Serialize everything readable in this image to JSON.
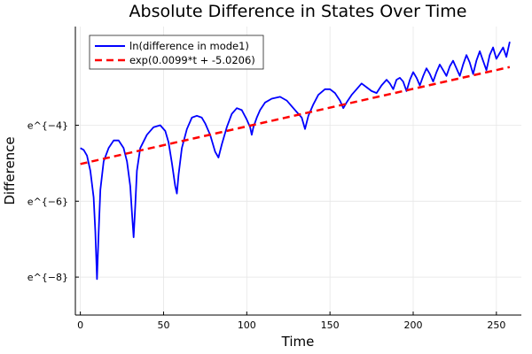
{
  "chart_data": {
    "type": "line",
    "title": "Absolute Difference in States Over Time",
    "xlabel": "Time",
    "ylabel": "Difference",
    "xlim": [
      -3,
      265
    ],
    "ylim": [
      -9.0,
      -1.4
    ],
    "y_scale": "log (base e)",
    "grid": true,
    "legend_position": "top-left",
    "xticks": [
      0,
      50,
      100,
      150,
      200,
      250
    ],
    "xtick_labels": [
      "0",
      "50",
      "100",
      "150",
      "200",
      "250"
    ],
    "yticks": [
      -4,
      -6,
      -8
    ],
    "ytick_labels": [
      "e^{−4}",
      "e^{−6}",
      "e^{−8}"
    ],
    "series": [
      {
        "name": "ln(difference in mode1)",
        "color": "#0000ff",
        "style": "solid",
        "points": [
          [
            0,
            -4.6
          ],
          [
            2,
            -4.65
          ],
          [
            4,
            -4.8
          ],
          [
            6,
            -5.2
          ],
          [
            8,
            -5.9
          ],
          [
            9,
            -6.8
          ],
          [
            10,
            -8.05
          ],
          [
            11,
            -6.8
          ],
          [
            12,
            -5.7
          ],
          [
            14,
            -4.95
          ],
          [
            17,
            -4.6
          ],
          [
            20,
            -4.4
          ],
          [
            23,
            -4.4
          ],
          [
            26,
            -4.6
          ],
          [
            28,
            -4.95
          ],
          [
            30,
            -5.6
          ],
          [
            31,
            -6.3
          ],
          [
            32,
            -6.95
          ],
          [
            33,
            -6.1
          ],
          [
            34,
            -5.2
          ],
          [
            36,
            -4.6
          ],
          [
            40,
            -4.25
          ],
          [
            44,
            -4.05
          ],
          [
            48,
            -4.0
          ],
          [
            51,
            -4.15
          ],
          [
            53,
            -4.45
          ],
          [
            55,
            -5.0
          ],
          [
            57,
            -5.6
          ],
          [
            58,
            -5.8
          ],
          [
            59,
            -5.3
          ],
          [
            61,
            -4.6
          ],
          [
            64,
            -4.1
          ],
          [
            67,
            -3.8
          ],
          [
            70,
            -3.75
          ],
          [
            73,
            -3.8
          ],
          [
            75,
            -3.95
          ],
          [
            78,
            -4.25
          ],
          [
            81,
            -4.7
          ],
          [
            83,
            -4.85
          ],
          [
            85,
            -4.5
          ],
          [
            88,
            -4.05
          ],
          [
            91,
            -3.7
          ],
          [
            94,
            -3.55
          ],
          [
            97,
            -3.6
          ],
          [
            100,
            -3.85
          ],
          [
            102,
            -4.05
          ],
          [
            103,
            -4.25
          ],
          [
            104,
            -4.05
          ],
          [
            106,
            -3.8
          ],
          [
            108,
            -3.6
          ],
          [
            111,
            -3.4
          ],
          [
            115,
            -3.3
          ],
          [
            120,
            -3.25
          ],
          [
            124,
            -3.35
          ],
          [
            127,
            -3.5
          ],
          [
            130,
            -3.65
          ],
          [
            133,
            -3.8
          ],
          [
            135,
            -4.1
          ],
          [
            137,
            -3.75
          ],
          [
            140,
            -3.45
          ],
          [
            143,
            -3.2
          ],
          [
            147,
            -3.05
          ],
          [
            150,
            -3.05
          ],
          [
            153,
            -3.15
          ],
          [
            156,
            -3.35
          ],
          [
            158,
            -3.55
          ],
          [
            160,
            -3.4
          ],
          [
            163,
            -3.2
          ],
          [
            166,
            -3.05
          ],
          [
            169,
            -2.9
          ],
          [
            172,
            -3.0
          ],
          [
            175,
            -3.1
          ],
          [
            178,
            -3.15
          ],
          [
            181,
            -2.95
          ],
          [
            184,
            -2.8
          ],
          [
            186,
            -2.9
          ],
          [
            188,
            -3.05
          ],
          [
            190,
            -2.8
          ],
          [
            192,
            -2.75
          ],
          [
            194,
            -2.85
          ],
          [
            196,
            -3.1
          ],
          [
            198,
            -2.8
          ],
          [
            200,
            -2.6
          ],
          [
            202,
            -2.75
          ],
          [
            204,
            -2.95
          ],
          [
            206,
            -2.7
          ],
          [
            208,
            -2.5
          ],
          [
            210,
            -2.65
          ],
          [
            212,
            -2.85
          ],
          [
            214,
            -2.6
          ],
          [
            216,
            -2.4
          ],
          [
            218,
            -2.55
          ],
          [
            220,
            -2.7
          ],
          [
            222,
            -2.45
          ],
          [
            224,
            -2.3
          ],
          [
            226,
            -2.5
          ],
          [
            228,
            -2.7
          ],
          [
            230,
            -2.4
          ],
          [
            232,
            -2.15
          ],
          [
            234,
            -2.35
          ],
          [
            236,
            -2.65
          ],
          [
            238,
            -2.3
          ],
          [
            240,
            -2.05
          ],
          [
            242,
            -2.3
          ],
          [
            244,
            -2.55
          ],
          [
            246,
            -2.15
          ],
          [
            248,
            -1.95
          ],
          [
            250,
            -2.25
          ],
          [
            252,
            -2.1
          ],
          [
            254,
            -1.95
          ],
          [
            256,
            -2.2
          ],
          [
            258,
            -1.8
          ]
        ]
      },
      {
        "name": "exp(0.0099*t + -5.0206)",
        "color": "#ff0000",
        "style": "dashed",
        "slope": 0.0099,
        "intercept": -5.0206,
        "x_range": [
          0,
          258
        ]
      }
    ]
  }
}
